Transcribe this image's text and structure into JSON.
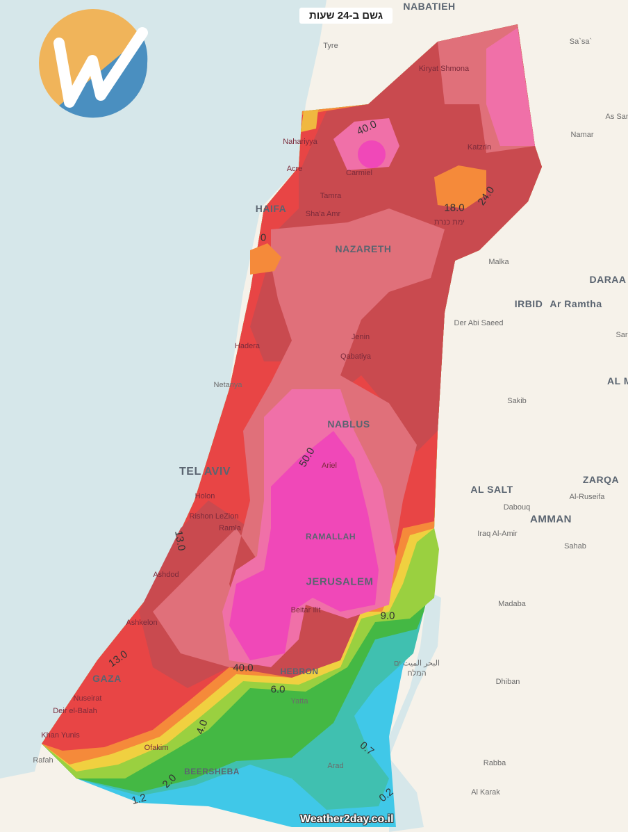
{
  "title": "גשם ב-24 שעות",
  "watermark": "Weather2day.co.il",
  "logo": {
    "letter": "W",
    "colors": [
      "#f0b45a",
      "#4a8fc0"
    ]
  },
  "legend_colors": {
    "cyan": "#40c8e8",
    "teal": "#40c0b0",
    "green": "#40b840",
    "lightgreen": "#9ad040",
    "yellow": "#f0d040",
    "orange": "#f58a3a",
    "red": "#e84545",
    "darkred": "#c94a4f",
    "rose": "#e0707a",
    "pink": "#f070a8",
    "magenta": "#f048b8"
  },
  "places": [
    {
      "name": "NABATIEH",
      "big": true
    },
    {
      "name": "Tyre"
    },
    {
      "name": "Sa`sa`"
    },
    {
      "name": "Kiryat Shmona"
    },
    {
      "name": "As Sar"
    },
    {
      "name": "Nahariyya"
    },
    {
      "name": "Namar"
    },
    {
      "name": "Katzrin"
    },
    {
      "name": "Acre"
    },
    {
      "name": "Carmiel"
    },
    {
      "name": "Tamra"
    },
    {
      "name": "HAIFA",
      "big": true
    },
    {
      "name": "Sha'a Amr"
    },
    {
      "name": "ימת כנרת"
    },
    {
      "name": "NAZARETH",
      "big": true
    },
    {
      "name": "Malka"
    },
    {
      "name": "DARAA",
      "big": true
    },
    {
      "name": "IRBID",
      "big": true
    },
    {
      "name": "Ar Ramtha",
      "big": true
    },
    {
      "name": "Der Abi Saeed"
    },
    {
      "name": "Jenin"
    },
    {
      "name": "Hadera"
    },
    {
      "name": "Qabatiya"
    },
    {
      "name": "Sar"
    },
    {
      "name": "Netanya"
    },
    {
      "name": "AL M",
      "big": true
    },
    {
      "name": "Sakib"
    },
    {
      "name": "NABLUS",
      "big": true
    },
    {
      "name": "TEL AVIV",
      "big": true
    },
    {
      "name": "Ariel"
    },
    {
      "name": "AL SALT",
      "big": true
    },
    {
      "name": "ZARQA",
      "big": true
    },
    {
      "name": "Holon"
    },
    {
      "name": "Dabouq"
    },
    {
      "name": "Al-Ruseifa"
    },
    {
      "name": "Rishon LeZion"
    },
    {
      "name": "AMMAN",
      "big": true
    },
    {
      "name": "Ramla"
    },
    {
      "name": "RAMALLAH",
      "big": true
    },
    {
      "name": "Iraq Al-Amir"
    },
    {
      "name": "Sahab"
    },
    {
      "name": "Ashdod"
    },
    {
      "name": "JERUSALEM",
      "big": true
    },
    {
      "name": "Madaba"
    },
    {
      "name": "Ashkelon"
    },
    {
      "name": "Beitar Ilit"
    },
    {
      "name": "البحر الميت ים"
    },
    {
      "name": "המלח"
    },
    {
      "name": "GAZA",
      "big": true
    },
    {
      "name": "HEBRON",
      "big": true
    },
    {
      "name": "Dhiban"
    },
    {
      "name": "Nuseirat"
    },
    {
      "name": "Yatta"
    },
    {
      "name": "Deir el-Balah"
    },
    {
      "name": "Khan Yunis"
    },
    {
      "name": "Ofakim"
    },
    {
      "name": "Rafah"
    },
    {
      "name": "Arad"
    },
    {
      "name": "Rabba"
    },
    {
      "name": "BEERSHEBA",
      "big": true
    },
    {
      "name": "Al Karak"
    }
  ],
  "contour_labels": [
    "40.0",
    "18.0",
    "24.0",
    "0",
    "50.0",
    "13.0",
    "13.0",
    "9.0",
    "40.0",
    "6.0",
    "4.0",
    "2.0",
    "1.2",
    "0.7",
    "0.2"
  ]
}
